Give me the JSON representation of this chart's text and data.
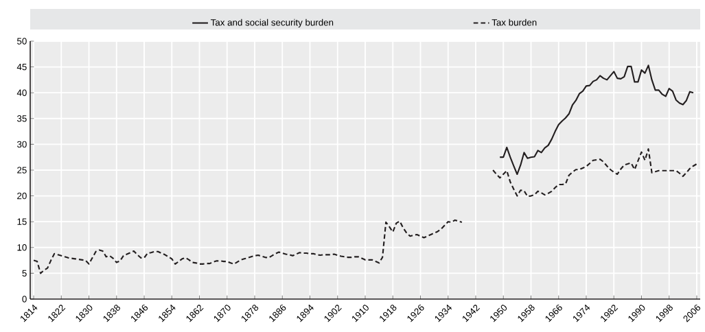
{
  "chart_data": {
    "type": "line",
    "legend": "top",
    "grid": true,
    "xlim": [
      1813,
      2007
    ],
    "xticks": [
      1814,
      1822,
      1830,
      1838,
      1846,
      1854,
      1862,
      1870,
      1878,
      1886,
      1894,
      1902,
      1910,
      1918,
      1926,
      1934,
      1942,
      1950,
      1958,
      1966,
      1974,
      1982,
      1990,
      1998,
      2006
    ],
    "ylim": [
      0,
      50
    ],
    "yticks": [
      0,
      5,
      10,
      15,
      20,
      25,
      30,
      35,
      40,
      45,
      50
    ],
    "series": [
      {
        "name": "Tax and social security burden",
        "color": "#231f20",
        "line_style": "solid",
        "x": [
          1949,
          1950,
          1951,
          1952,
          1953,
          1954,
          1955,
          1956,
          1957,
          1958,
          1959,
          1960,
          1961,
          1962,
          1963,
          1964,
          1965,
          1966,
          1967,
          1968,
          1969,
          1970,
          1971,
          1972,
          1973,
          1974,
          1975,
          1976,
          1977,
          1978,
          1979,
          1980,
          1981,
          1982,
          1983,
          1984,
          1985,
          1986,
          1987,
          1988,
          1989,
          1990,
          1991,
          1992,
          1993,
          1994,
          1995,
          1996,
          1997,
          1998,
          1999,
          2000,
          2001,
          2002,
          2003,
          2004,
          2005
        ],
        "values": [
          27.5,
          27.5,
          29.4,
          27.5,
          25.8,
          24.2,
          26.0,
          28.4,
          27.3,
          27.5,
          27.6,
          28.8,
          28.4,
          29.3,
          29.8,
          31.0,
          32.5,
          33.8,
          34.5,
          35.1,
          35.9,
          37.6,
          38.5,
          39.8,
          40.3,
          41.3,
          41.4,
          42.2,
          42.5,
          43.3,
          42.8,
          42.5,
          43.3,
          44.1,
          42.8,
          42.7,
          43.1,
          45.1,
          45.1,
          42.1,
          42.1,
          44.4,
          43.8,
          45.3,
          42.5,
          40.5,
          40.5,
          39.7,
          39.3,
          40.8,
          40.3,
          38.6,
          38.0,
          37.7,
          38.5,
          40.2,
          40.0
        ]
      },
      {
        "name": "Tax burden",
        "color": "#231f20",
        "line_style": "dashed",
        "x": [
          1814,
          1815,
          1816,
          1817,
          1818,
          1819,
          1820,
          1821,
          1822,
          1823,
          1824,
          1825,
          1826,
          1827,
          1828,
          1829,
          1830,
          1831,
          1832,
          1833,
          1834,
          1835,
          1836,
          1837,
          1838,
          1839,
          1840,
          1841,
          1842,
          1843,
          1844,
          1845,
          1846,
          1847,
          1848,
          1849,
          1850,
          1851,
          1852,
          1853,
          1854,
          1855,
          1856,
          1857,
          1858,
          1859,
          1860,
          1861,
          1862,
          1863,
          1864,
          1865,
          1866,
          1867,
          1868,
          1869,
          1870,
          1871,
          1872,
          1873,
          1874,
          1875,
          1876,
          1877,
          1878,
          1879,
          1880,
          1881,
          1882,
          1883,
          1884,
          1885,
          1886,
          1887,
          1888,
          1889,
          1890,
          1891,
          1892,
          1893,
          1894,
          1895,
          1896,
          1897,
          1898,
          1899,
          1900,
          1901,
          1902,
          1903,
          1904,
          1905,
          1906,
          1907,
          1908,
          1909,
          1910,
          1911,
          1912,
          1913,
          1914,
          1915,
          1916,
          1917,
          1918,
          1919,
          1920,
          1921,
          1922,
          1923,
          1924,
          1925,
          1926,
          1927,
          1928,
          1929,
          1930,
          1931,
          1932,
          1933,
          1934,
          1935,
          1936,
          1937,
          1938,
          1939,
          1947,
          1948,
          1949,
          1950,
          1951,
          1952,
          1953,
          1954,
          1955,
          1956,
          1957,
          1958,
          1959,
          1960,
          1961,
          1962,
          1963,
          1964,
          1965,
          1966,
          1967,
          1968,
          1969,
          1970,
          1971,
          1972,
          1973,
          1974,
          1975,
          1976,
          1977,
          1978,
          1979,
          1980,
          1981,
          1982,
          1983,
          1984,
          1985,
          1986,
          1987,
          1988,
          1989,
          1990,
          1991,
          1992,
          1993,
          1994,
          1995,
          1996,
          1997,
          1998,
          1999,
          2000,
          2001,
          2002,
          2003,
          2004,
          2005,
          2006
        ],
        "values": [
          7.5,
          7.3,
          5.0,
          5.6,
          6.0,
          7.5,
          8.8,
          8.6,
          8.4,
          8.2,
          8.0,
          7.9,
          7.8,
          7.7,
          7.6,
          7.5,
          6.8,
          8.0,
          9.2,
          9.5,
          9.3,
          8.2,
          8.4,
          7.9,
          7.1,
          7.4,
          8.4,
          8.7,
          9.0,
          9.3,
          8.6,
          8.0,
          8.0,
          8.9,
          9.0,
          9.2,
          9.2,
          8.9,
          8.6,
          8.2,
          7.8,
          6.8,
          7.3,
          7.8,
          8.0,
          7.6,
          7.1,
          7.0,
          6.8,
          6.8,
          6.9,
          6.9,
          7.2,
          7.4,
          7.4,
          7.3,
          7.3,
          7.0,
          6.8,
          7.2,
          7.6,
          7.8,
          8.0,
          8.2,
          8.4,
          8.5,
          8.3,
          8.1,
          8.0,
          8.4,
          8.8,
          9.1,
          8.9,
          8.7,
          8.6,
          8.4,
          8.7,
          9.0,
          8.9,
          8.9,
          8.8,
          8.8,
          8.6,
          8.5,
          8.6,
          8.6,
          8.6,
          8.7,
          8.5,
          8.3,
          8.2,
          8.1,
          8.1,
          8.2,
          8.2,
          7.9,
          7.6,
          7.6,
          7.6,
          7.3,
          7.0,
          8.1,
          14.9,
          14.0,
          13.0,
          14.7,
          15.1,
          13.8,
          12.8,
          12.2,
          12.4,
          12.5,
          12.2,
          11.9,
          12.2,
          12.5,
          12.8,
          13.1,
          13.6,
          14.3,
          15.0,
          14.9,
          15.3,
          15.1,
          14.9,
          null,
          25.0,
          24.2,
          23.5,
          24.2,
          24.9,
          22.7,
          21.3,
          20.0,
          21.1,
          21.0,
          19.9,
          20.0,
          20.2,
          20.9,
          20.6,
          20.2,
          20.5,
          20.9,
          21.6,
          22.2,
          22.2,
          22.3,
          24.0,
          24.6,
          25.1,
          25.1,
          25.4,
          25.7,
          26.3,
          26.9,
          27.0,
          27.1,
          26.6,
          25.8,
          25.1,
          24.6,
          24.2,
          25.2,
          26.0,
          26.2,
          26.4,
          25.1,
          26.8,
          28.5,
          26.9,
          29.1,
          24.5,
          24.7,
          24.9,
          24.9,
          24.9,
          24.9,
          24.9,
          24.9,
          24.4,
          23.8,
          24.5,
          25.3,
          25.8,
          26.2
        ]
      }
    ]
  }
}
